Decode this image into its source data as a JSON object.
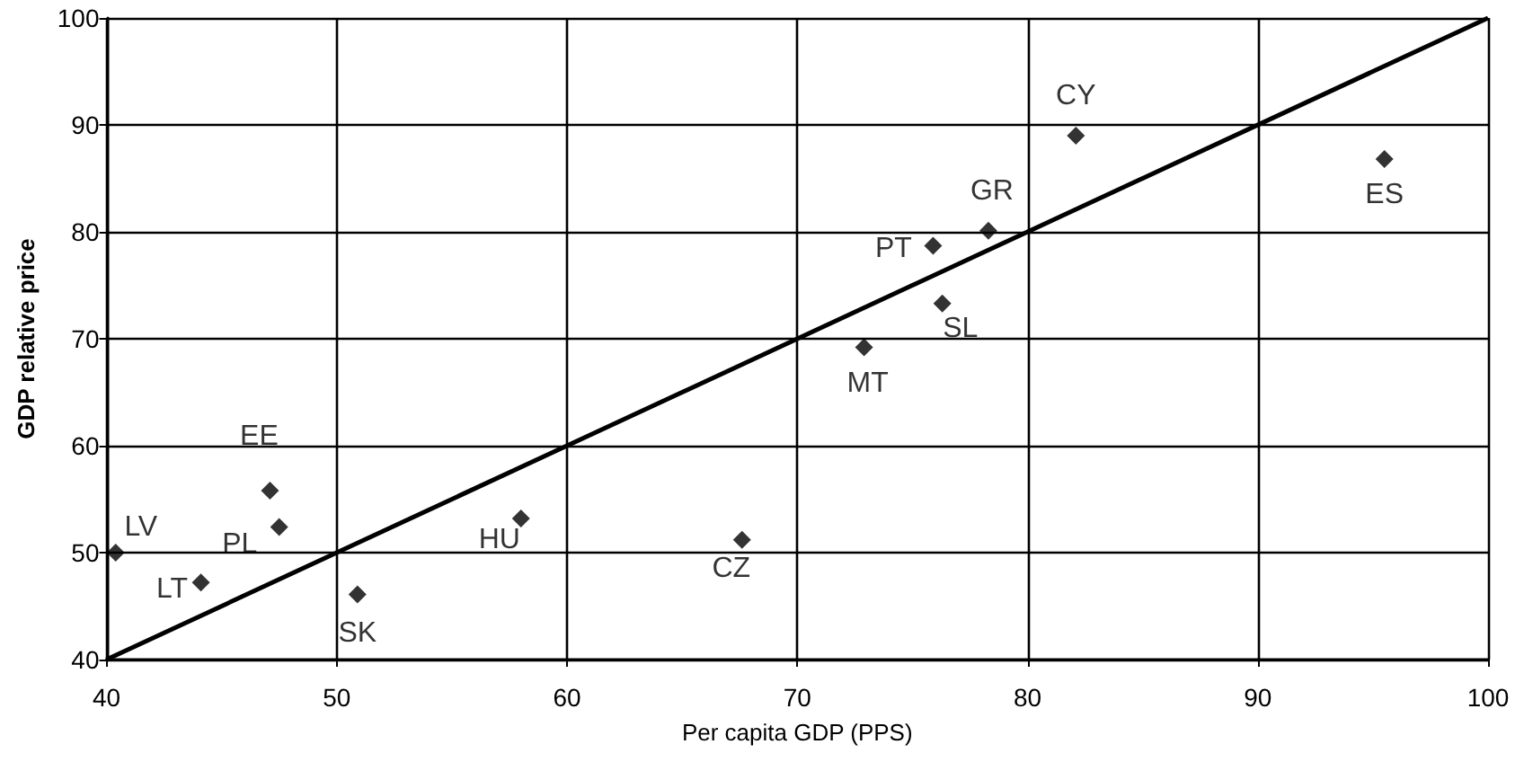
{
  "chart_data": {
    "type": "scatter",
    "xlabel": "Per capita GDP (PPS)",
    "ylabel": "GDP relative price",
    "xlim": [
      40,
      100
    ],
    "xticks": [
      40,
      50,
      60,
      70,
      80,
      90,
      100
    ],
    "ylim": [
      40,
      100
    ],
    "yticks": [
      40,
      50,
      60,
      70,
      80,
      90,
      100
    ],
    "grid": true,
    "series": [
      {
        "color": "#000000",
        "marker": "diamond",
        "x": [
          40.4,
          44.1,
          47.1,
          47.5,
          50.9,
          58.0,
          67.6,
          82.1,
          78.3,
          75.9,
          76.3,
          72.9,
          95.5
        ],
        "values": [
          50,
          47.2,
          55.8,
          52.4,
          46.1,
          53.2,
          51.2,
          89,
          80.1,
          78.7,
          73.3,
          69.2,
          86.8
        ]
      },
      {
        "type": "line",
        "color": "#000000",
        "marker": "none",
        "line_style": "solid",
        "x": [
          40,
          100
        ],
        "values": [
          40,
          100
        ]
      }
    ],
    "annotations": [
      {
        "text": "LV",
        "x": 40.4,
        "y": 50
      },
      {
        "text": "LT",
        "x": 44.1,
        "y": 47.2
      },
      {
        "text": "EE",
        "x": 47.1,
        "y": 55.8
      },
      {
        "text": "PL",
        "x": 47.5,
        "y": 52.4
      },
      {
        "text": "SK",
        "x": 50.9,
        "y": 46.1
      },
      {
        "text": "HU",
        "x": 58.0,
        "y": 53.2
      },
      {
        "text": "CZ",
        "x": 67.6,
        "y": 51.2
      },
      {
        "text": "CY",
        "x": 82.1,
        "y": 89
      },
      {
        "text": "GR",
        "x": 78.3,
        "y": 80.1
      },
      {
        "text": "PT",
        "x": 75.9,
        "y": 78.7
      },
      {
        "text": "SL",
        "x": 76.3,
        "y": 73.3
      },
      {
        "text": "MT",
        "x": 72.9,
        "y": 69.2
      },
      {
        "text": "ES",
        "x": 95.5,
        "y": 86.8
      }
    ]
  }
}
